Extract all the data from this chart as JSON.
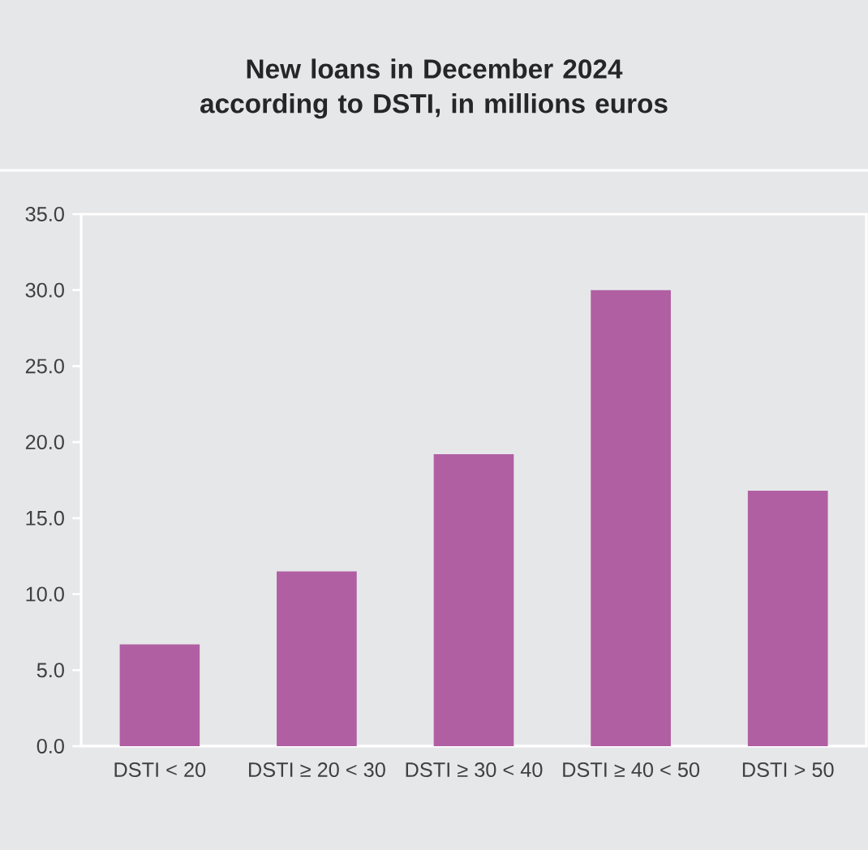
{
  "chart_data": {
    "type": "bar",
    "title": "New loans in December 2024 according to DSTI, in millions euros",
    "categories": [
      "DSTI < 20",
      "DSTI ≥ 20 < 30",
      "DSTI ≥ 30 < 40",
      "DSTI ≥ 40 < 50",
      "DSTI > 50"
    ],
    "values": [
      6.7,
      11.5,
      19.2,
      30.0,
      16.8
    ],
    "color": "#b05fa3",
    "ylim": [
      0,
      35
    ],
    "yticks": [
      {
        "value": 0,
        "label": "0.0"
      },
      {
        "value": 5,
        "label": "5.0"
      },
      {
        "value": 10,
        "label": "10.0"
      },
      {
        "value": 15,
        "label": "15.0"
      },
      {
        "value": 20,
        "label": "20.0"
      },
      {
        "value": 25,
        "label": "25.0"
      },
      {
        "value": 30,
        "label": "30.0"
      },
      {
        "value": 35,
        "label": "35.0"
      }
    ]
  }
}
